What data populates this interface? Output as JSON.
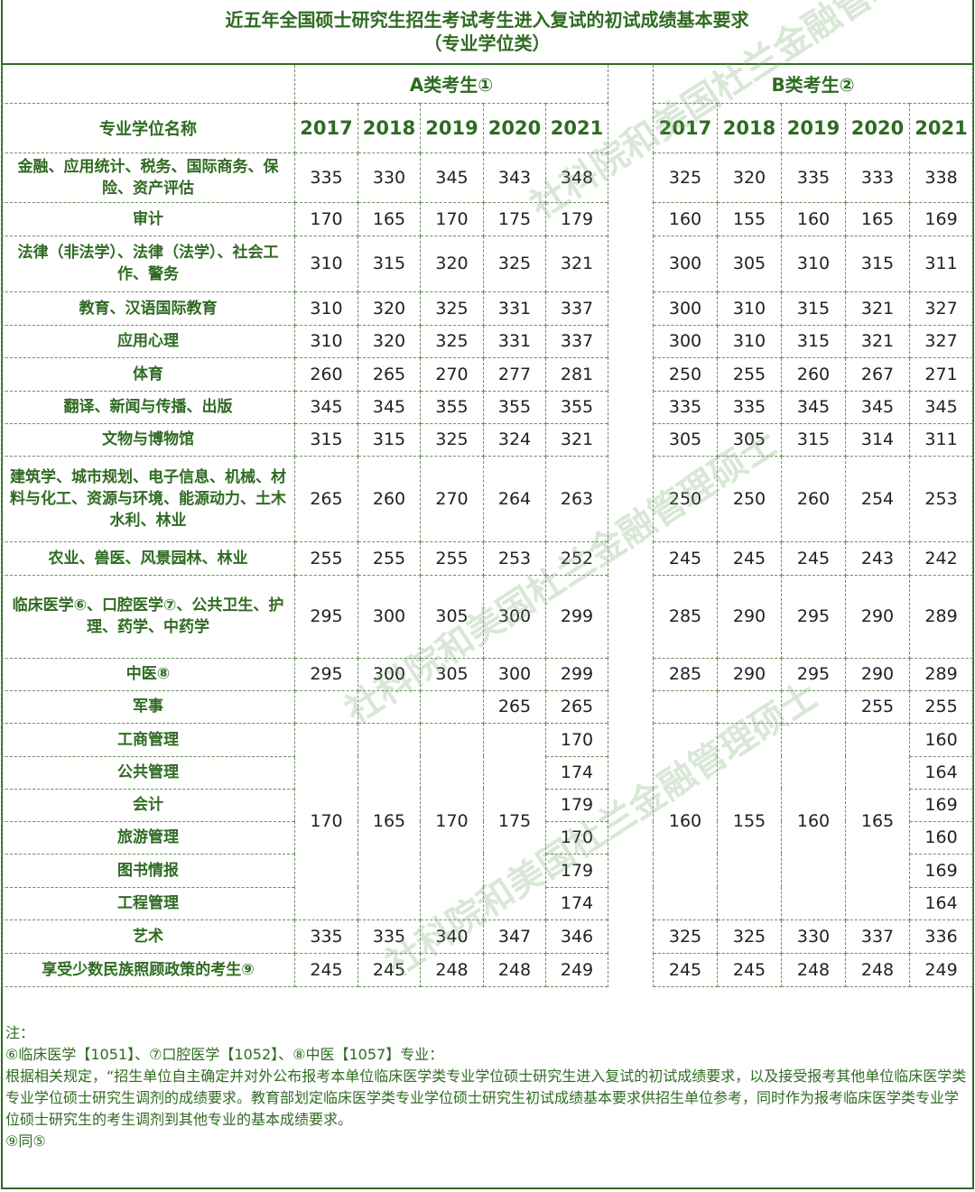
{
  "title": [
    "近五年全国硕士研究生招生考试考生进入复试的初试成绩基本要求",
    "（专业学位类）"
  ],
  "group_a": "A类考生①",
  "group_b": "B类考生②",
  "name_header": "专业学位名称",
  "years": [
    "2017",
    "2018",
    "2019",
    "2020",
    "2021"
  ],
  "rows": [
    {
      "name": "金融、应用统计、税务、国际商务、保险、资产评估",
      "a": [
        "335",
        "330",
        "345",
        "343",
        "348"
      ],
      "b": [
        "325",
        "320",
        "335",
        "333",
        "338"
      ]
    },
    {
      "name": "审计",
      "a": [
        "170",
        "165",
        "170",
        "175",
        "179"
      ],
      "b": [
        "160",
        "155",
        "160",
        "165",
        "169"
      ]
    },
    {
      "name": "法律（非法学）、法律（法学）、社会工作、警务",
      "a": [
        "310",
        "315",
        "320",
        "325",
        "321"
      ],
      "b": [
        "300",
        "305",
        "310",
        "315",
        "311"
      ]
    },
    {
      "name": "教育、汉语国际教育",
      "a": [
        "310",
        "320",
        "325",
        "331",
        "337"
      ],
      "b": [
        "300",
        "310",
        "315",
        "321",
        "327"
      ]
    },
    {
      "name": "应用心理",
      "a": [
        "310",
        "320",
        "325",
        "331",
        "337"
      ],
      "b": [
        "300",
        "310",
        "315",
        "321",
        "327"
      ]
    },
    {
      "name": "体育",
      "a": [
        "260",
        "265",
        "270",
        "277",
        "281"
      ],
      "b": [
        "250",
        "255",
        "260",
        "267",
        "271"
      ]
    },
    {
      "name": "翻译、新闻与传播、出版",
      "a": [
        "345",
        "345",
        "355",
        "355",
        "355"
      ],
      "b": [
        "335",
        "335",
        "345",
        "345",
        "345"
      ]
    },
    {
      "name": "文物与博物馆",
      "a": [
        "315",
        "315",
        "325",
        "324",
        "321"
      ],
      "b": [
        "305",
        "305",
        "315",
        "314",
        "311"
      ]
    },
    {
      "name": "建筑学、城市规划、电子信息、机械、材料与化工、资源与环境、能源动力、土木水利、林业",
      "a": [
        "265",
        "260",
        "270",
        "264",
        "263"
      ],
      "b": [
        "250",
        "250",
        "260",
        "254",
        "253"
      ]
    },
    {
      "name": "农业、兽医、风景园林、林业",
      "a": [
        "255",
        "255",
        "255",
        "253",
        "252"
      ],
      "b": [
        "245",
        "245",
        "245",
        "243",
        "242"
      ]
    },
    {
      "name": "临床医学⑥、口腔医学⑦、公共卫生、护理、药学、中药学",
      "a": [
        "295",
        "300",
        "305",
        "300",
        "299"
      ],
      "b": [
        "285",
        "290",
        "295",
        "290",
        "289"
      ]
    },
    {
      "name": "中医⑧",
      "a": [
        "295",
        "300",
        "305",
        "300",
        "299"
      ],
      "b": [
        "285",
        "290",
        "295",
        "290",
        "289"
      ]
    },
    {
      "name": "军事",
      "a": [
        "",
        "",
        "",
        "265",
        "265"
      ],
      "b": [
        "",
        "",
        "",
        "255",
        "255"
      ]
    }
  ],
  "merged_group": {
    "names": [
      "工商管理",
      "公共管理",
      "会计",
      "旅游管理",
      "图书情报",
      "工程管理"
    ],
    "a_shared": [
      "170",
      "165",
      "170",
      "175"
    ],
    "a_2021": [
      "170",
      "174",
      "179",
      "170",
      "179",
      "174"
    ],
    "b_shared": [
      "160",
      "155",
      "160",
      "165"
    ],
    "b_2021": [
      "160",
      "164",
      "169",
      "160",
      "169",
      "164"
    ]
  },
  "tail_rows": [
    {
      "name": "艺术",
      "a": [
        "335",
        "335",
        "340",
        "347",
        "346"
      ],
      "b": [
        "325",
        "325",
        "330",
        "337",
        "336"
      ]
    },
    {
      "name": "享受少数民族照顾政策的考生⑨",
      "a": [
        "245",
        "245",
        "248",
        "248",
        "249"
      ],
      "b": [
        "245",
        "245",
        "248",
        "248",
        "249"
      ]
    }
  ],
  "notes": [
    "注：",
    "⑥临床医学【1051】、⑦口腔医学【1052】、⑧中医【1057】专业：",
    "根据相关规定，“招生单位自主确定并对外公布报考本单位临床医学类专业学位硕士研究生进入复试的初试成绩要求，以及接受报考其他单位临床医学类专业学位硕士研究生调剂的成绩要求。教育部划定临床医学类专业学位硕士研究生初试成绩基本要求供招生单位参考，同时作为报考临床医学类专业学位硕士研究生的考生调剂到其他专业的基本成绩要求。",
    "⑨同⑤"
  ],
  "watermark": "社科院和美国杜兰金融管理硕士",
  "colors": {
    "heading_green": "#2f6b22",
    "border_green": "#6a8f5e",
    "number_text": "#222222"
  }
}
